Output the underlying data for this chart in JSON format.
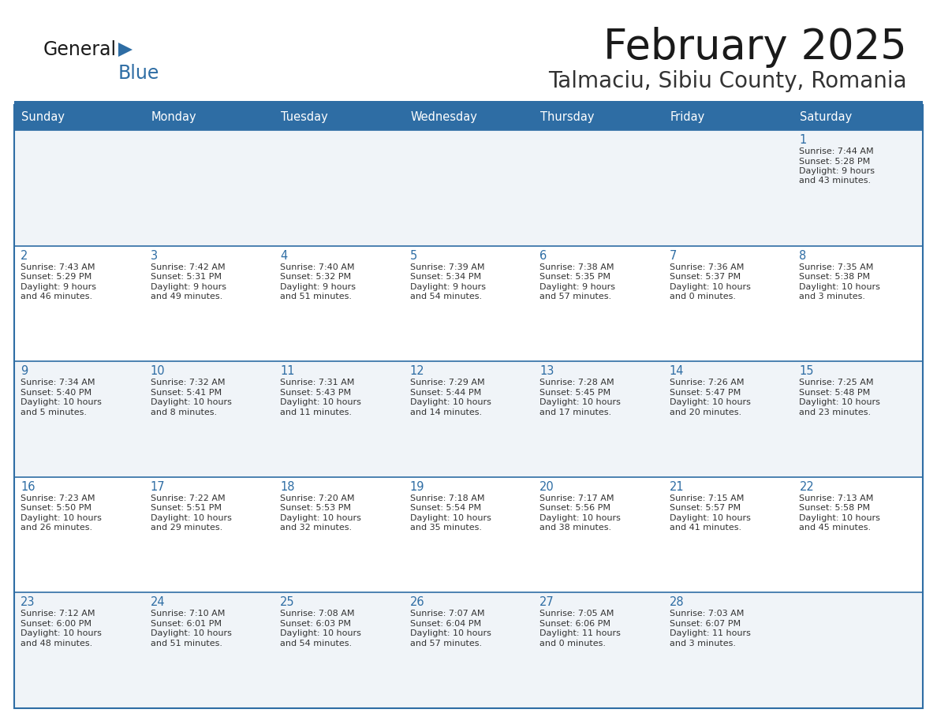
{
  "title": "February 2025",
  "subtitle": "Talmaciu, Sibiu County, Romania",
  "header_bg": "#2E6DA4",
  "header_text_color": "#FFFFFF",
  "cell_bg_light": "#F0F4F8",
  "cell_bg_white": "#FFFFFF",
  "border_color": "#2E6DA4",
  "day_headers": [
    "Sunday",
    "Monday",
    "Tuesday",
    "Wednesday",
    "Thursday",
    "Friday",
    "Saturday"
  ],
  "title_color": "#1A1A1A",
  "subtitle_color": "#333333",
  "day_number_color": "#2E6DA4",
  "info_text_color": "#333333",
  "logo_general_color": "#1A1A1A",
  "logo_blue_color": "#2E6DA4",
  "calendar": [
    [
      null,
      null,
      null,
      null,
      null,
      null,
      1
    ],
    [
      2,
      3,
      4,
      5,
      6,
      7,
      8
    ],
    [
      9,
      10,
      11,
      12,
      13,
      14,
      15
    ],
    [
      16,
      17,
      18,
      19,
      20,
      21,
      22
    ],
    [
      23,
      24,
      25,
      26,
      27,
      28,
      null
    ]
  ],
  "row_bg": [
    "light",
    "white",
    "light",
    "white",
    "light"
  ],
  "sunrise": {
    "1": "7:44 AM",
    "2": "7:43 AM",
    "3": "7:42 AM",
    "4": "7:40 AM",
    "5": "7:39 AM",
    "6": "7:38 AM",
    "7": "7:36 AM",
    "8": "7:35 AM",
    "9": "7:34 AM",
    "10": "7:32 AM",
    "11": "7:31 AM",
    "12": "7:29 AM",
    "13": "7:28 AM",
    "14": "7:26 AM",
    "15": "7:25 AM",
    "16": "7:23 AM",
    "17": "7:22 AM",
    "18": "7:20 AM",
    "19": "7:18 AM",
    "20": "7:17 AM",
    "21": "7:15 AM",
    "22": "7:13 AM",
    "23": "7:12 AM",
    "24": "7:10 AM",
    "25": "7:08 AM",
    "26": "7:07 AM",
    "27": "7:05 AM",
    "28": "7:03 AM"
  },
  "sunset": {
    "1": "5:28 PM",
    "2": "5:29 PM",
    "3": "5:31 PM",
    "4": "5:32 PM",
    "5": "5:34 PM",
    "6": "5:35 PM",
    "7": "5:37 PM",
    "8": "5:38 PM",
    "9": "5:40 PM",
    "10": "5:41 PM",
    "11": "5:43 PM",
    "12": "5:44 PM",
    "13": "5:45 PM",
    "14": "5:47 PM",
    "15": "5:48 PM",
    "16": "5:50 PM",
    "17": "5:51 PM",
    "18": "5:53 PM",
    "19": "5:54 PM",
    "20": "5:56 PM",
    "21": "5:57 PM",
    "22": "5:58 PM",
    "23": "6:00 PM",
    "24": "6:01 PM",
    "25": "6:03 PM",
    "26": "6:04 PM",
    "27": "6:06 PM",
    "28": "6:07 PM"
  },
  "daylight": {
    "1": "9 hours and 43 minutes.",
    "2": "9 hours and 46 minutes.",
    "3": "9 hours and 49 minutes.",
    "4": "9 hours and 51 minutes.",
    "5": "9 hours and 54 minutes.",
    "6": "9 hours and 57 minutes.",
    "7": "10 hours and 0 minutes.",
    "8": "10 hours and 3 minutes.",
    "9": "10 hours and 5 minutes.",
    "10": "10 hours and 8 minutes.",
    "11": "10 hours and 11 minutes.",
    "12": "10 hours and 14 minutes.",
    "13": "10 hours and 17 minutes.",
    "14": "10 hours and 20 minutes.",
    "15": "10 hours and 23 minutes.",
    "16": "10 hours and 26 minutes.",
    "17": "10 hours and 29 minutes.",
    "18": "10 hours and 32 minutes.",
    "19": "10 hours and 35 minutes.",
    "20": "10 hours and 38 minutes.",
    "21": "10 hours and 41 minutes.",
    "22": "10 hours and 45 minutes.",
    "23": "10 hours and 48 minutes.",
    "24": "10 hours and 51 minutes.",
    "25": "10 hours and 54 minutes.",
    "26": "10 hours and 57 minutes.",
    "27": "11 hours and 0 minutes.",
    "28": "11 hours and 3 minutes."
  }
}
